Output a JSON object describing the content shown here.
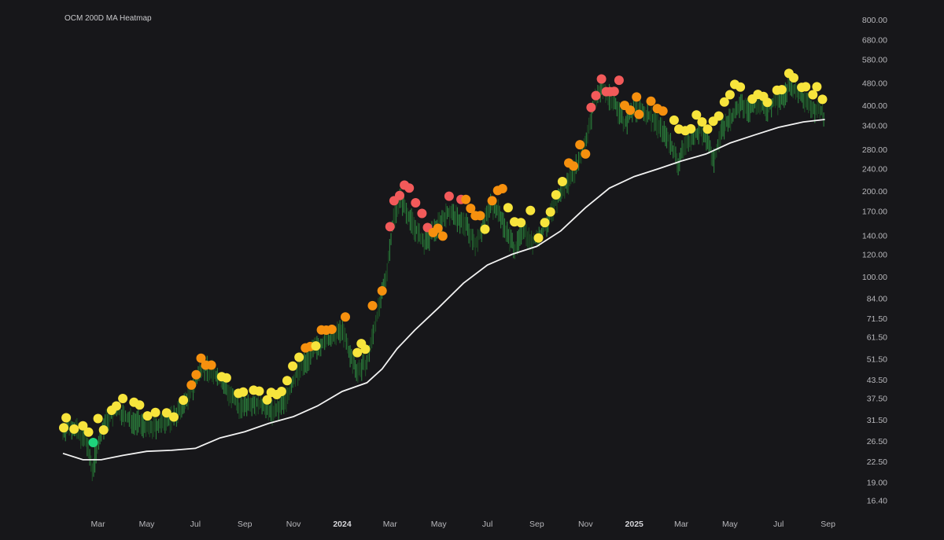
{
  "chart_data": {
    "type": "scatter",
    "title": "OCM 200D MA Heatmap",
    "y_scale": "log",
    "ylim": [
      14.6,
      880
    ],
    "y_ticks": [
      "16.40",
      "19.00",
      "22.50",
      "26.50",
      "31.50",
      "37.50",
      "43.50",
      "51.50",
      "61.50",
      "71.50",
      "84.00",
      "100.00",
      "120.00",
      "140.00",
      "170.00",
      "200.00",
      "240.00",
      "280.00",
      "340.00",
      "400.00",
      "480.00",
      "580.00",
      "680.00",
      "800.00"
    ],
    "x_ticks": [
      {
        "label": "Mar",
        "date": "2023-03-01",
        "bold": false
      },
      {
        "label": "May",
        "date": "2023-05-01",
        "bold": false
      },
      {
        "label": "Jul",
        "date": "2023-07-01",
        "bold": false
      },
      {
        "label": "Sep",
        "date": "2023-09-01",
        "bold": false
      },
      {
        "label": "Nov",
        "date": "2023-11-01",
        "bold": false
      },
      {
        "label": "2024",
        "date": "2024-01-01",
        "bold": true
      },
      {
        "label": "Mar",
        "date": "2024-03-01",
        "bold": false
      },
      {
        "label": "May",
        "date": "2024-05-01",
        "bold": false
      },
      {
        "label": "Jul",
        "date": "2024-07-01",
        "bold": false
      },
      {
        "label": "Sep",
        "date": "2024-09-01",
        "bold": false
      },
      {
        "label": "Nov",
        "date": "2024-11-01",
        "bold": false
      },
      {
        "label": "2025",
        "date": "2025-01-01",
        "bold": true
      },
      {
        "label": "Mar",
        "date": "2025-03-01",
        "bold": false
      },
      {
        "label": "May",
        "date": "2025-05-01",
        "bold": false
      },
      {
        "label": "Jul",
        "date": "2025-07-01",
        "bold": false
      },
      {
        "label": "Sep",
        "date": "2025-09-01",
        "bold": false
      }
    ],
    "xlim": [
      "2023-01-16",
      "2025-09-28"
    ],
    "colors": {
      "background": "#17171a",
      "candle": "#2a7a3a",
      "ma_line": "#f2f2f2",
      "green": "#1ed47c",
      "yellow": "#f7e43c",
      "orange": "#f6900e",
      "red": "#f25a5a"
    },
    "ma_200d": [
      [
        "2023-01-16",
        24.0
      ],
      [
        "2023-02-10",
        22.8
      ],
      [
        "2023-03-05",
        22.8
      ],
      [
        "2023-04-01",
        23.6
      ],
      [
        "2023-05-01",
        24.4
      ],
      [
        "2023-06-01",
        24.6
      ],
      [
        "2023-07-01",
        25.0
      ],
      [
        "2023-08-01",
        27.2
      ],
      [
        "2023-09-01",
        28.6
      ],
      [
        "2023-10-01",
        30.6
      ],
      [
        "2023-11-01",
        32.3
      ],
      [
        "2023-12-01",
        35.2
      ],
      [
        "2024-01-01",
        39.6
      ],
      [
        "2024-02-01",
        42.5
      ],
      [
        "2024-02-20",
        47.5
      ],
      [
        "2024-03-10",
        56.0
      ],
      [
        "2024-04-01",
        65.0
      ],
      [
        "2024-05-01",
        78.0
      ],
      [
        "2024-06-01",
        95.0
      ],
      [
        "2024-07-01",
        110.0
      ],
      [
        "2024-08-01",
        120.0
      ],
      [
        "2024-09-01",
        128.0
      ],
      [
        "2024-10-01",
        145.0
      ],
      [
        "2024-11-01",
        175.0
      ],
      [
        "2024-12-01",
        205.0
      ],
      [
        "2025-01-01",
        225.0
      ],
      [
        "2025-02-01",
        240.0
      ],
      [
        "2025-03-01",
        255.0
      ],
      [
        "2025-04-01",
        270.0
      ],
      [
        "2025-05-01",
        295.0
      ],
      [
        "2025-06-01",
        315.0
      ],
      [
        "2025-07-01",
        335.0
      ],
      [
        "2025-08-01",
        350.0
      ],
      [
        "2025-08-28",
        357.0
      ]
    ],
    "price": [
      [
        "2023-01-16",
        29.0
      ],
      [
        "2023-01-25",
        30.5
      ],
      [
        "2023-02-05",
        28.5
      ],
      [
        "2023-02-15",
        26.0
      ],
      [
        "2023-02-22",
        21.0
      ],
      [
        "2023-03-01",
        26.0
      ],
      [
        "2023-03-10",
        31.0
      ],
      [
        "2023-03-25",
        34.5
      ],
      [
        "2023-04-05",
        32.0
      ],
      [
        "2023-04-20",
        31.0
      ],
      [
        "2023-05-05",
        29.5
      ],
      [
        "2023-05-20",
        30.5
      ],
      [
        "2023-06-01",
        32.0
      ],
      [
        "2023-06-15",
        35.0
      ],
      [
        "2023-07-01",
        43.0
      ],
      [
        "2023-07-10",
        49.0
      ],
      [
        "2023-07-20",
        47.0
      ],
      [
        "2023-08-01",
        44.0
      ],
      [
        "2023-08-15",
        38.0
      ],
      [
        "2023-08-25",
        35.0
      ],
      [
        "2023-09-10",
        36.5
      ],
      [
        "2023-09-25",
        35.5
      ],
      [
        "2023-10-05",
        33.5
      ],
      [
        "2023-10-15",
        35.0
      ],
      [
        "2023-10-25",
        38.5
      ],
      [
        "2023-11-05",
        46.0
      ],
      [
        "2023-11-15",
        50.0
      ],
      [
        "2023-11-25",
        55.0
      ],
      [
        "2023-12-10",
        60.0
      ],
      [
        "2023-12-20",
        61.0
      ],
      [
        "2024-01-01",
        66.0
      ],
      [
        "2024-01-12",
        52.0
      ],
      [
        "2024-01-20",
        47.0
      ],
      [
        "2024-02-01",
        50.0
      ],
      [
        "2024-02-12",
        70.0
      ],
      [
        "2024-02-25",
        100.0
      ],
      [
        "2024-03-05",
        160.0
      ],
      [
        "2024-03-14",
        190.0
      ],
      [
        "2024-03-22",
        170.0
      ],
      [
        "2024-04-01",
        150.0
      ],
      [
        "2024-04-12",
        130.0
      ],
      [
        "2024-04-22",
        142.0
      ],
      [
        "2024-05-05",
        160.0
      ],
      [
        "2024-05-15",
        170.0
      ],
      [
        "2024-05-25",
        160.0
      ],
      [
        "2024-06-05",
        152.0
      ],
      [
        "2024-06-15",
        130.0
      ],
      [
        "2024-06-25",
        150.0
      ],
      [
        "2024-07-05",
        180.0
      ],
      [
        "2024-07-15",
        170.0
      ],
      [
        "2024-07-25",
        145.0
      ],
      [
        "2024-08-05",
        125.0
      ],
      [
        "2024-08-15",
        150.0
      ],
      [
        "2024-08-25",
        132.0
      ],
      [
        "2024-09-05",
        140.0
      ],
      [
        "2024-09-15",
        158.0
      ],
      [
        "2024-09-25",
        185.0
      ],
      [
        "2024-10-05",
        205.0
      ],
      [
        "2024-10-15",
        230.0
      ],
      [
        "2024-10-25",
        260.0
      ],
      [
        "2024-11-05",
        330.0
      ],
      [
        "2024-11-12",
        420.0
      ],
      [
        "2024-11-20",
        460.0
      ],
      [
        "2024-12-01",
        430.0
      ],
      [
        "2024-12-10",
        400.0
      ],
      [
        "2024-12-20",
        345.0
      ],
      [
        "2025-01-01",
        390.0
      ],
      [
        "2025-01-12",
        380.0
      ],
      [
        "2025-01-25",
        360.0
      ],
      [
        "2025-02-05",
        330.0
      ],
      [
        "2025-02-15",
        300.0
      ],
      [
        "2025-02-25",
        250.0
      ],
      [
        "2025-03-05",
        290.0
      ],
      [
        "2025-03-15",
        310.0
      ],
      [
        "2025-03-25",
        330.0
      ],
      [
        "2025-04-05",
        300.0
      ],
      [
        "2025-04-10",
        250.0
      ],
      [
        "2025-04-20",
        330.0
      ],
      [
        "2025-05-05",
        370.0
      ],
      [
        "2025-05-15",
        400.0
      ],
      [
        "2025-05-25",
        390.0
      ],
      [
        "2025-06-05",
        410.0
      ],
      [
        "2025-06-15",
        390.0
      ],
      [
        "2025-06-25",
        410.0
      ],
      [
        "2025-07-05",
        420.0
      ],
      [
        "2025-07-15",
        470.0
      ],
      [
        "2025-07-25",
        440.0
      ],
      [
        "2025-08-05",
        420.0
      ],
      [
        "2025-08-15",
        390.0
      ],
      [
        "2025-08-25",
        380.0
      ],
      [
        "2025-08-28",
        355.0
      ]
    ],
    "dots": [
      [
        "2023-01-17",
        29.5,
        "yellow"
      ],
      [
        "2023-01-20",
        32.0,
        "yellow"
      ],
      [
        "2023-01-30",
        29.2,
        "yellow"
      ],
      [
        "2023-02-10",
        30.0,
        "yellow"
      ],
      [
        "2023-02-17",
        28.5,
        "yellow"
      ],
      [
        "2023-02-23",
        26.2,
        "green"
      ],
      [
        "2023-03-01",
        31.8,
        "yellow"
      ],
      [
        "2023-03-08",
        29.0,
        "yellow"
      ],
      [
        "2023-03-18",
        34.0,
        "yellow"
      ],
      [
        "2023-03-24",
        35.2,
        "yellow"
      ],
      [
        "2023-04-01",
        37.4,
        "yellow"
      ],
      [
        "2023-04-15",
        36.3,
        "yellow"
      ],
      [
        "2023-04-22",
        35.5,
        "yellow"
      ],
      [
        "2023-05-02",
        32.5,
        "yellow"
      ],
      [
        "2023-05-12",
        33.4,
        "yellow"
      ],
      [
        "2023-05-26",
        33.3,
        "yellow"
      ],
      [
        "2023-06-04",
        32.2,
        "yellow"
      ],
      [
        "2023-06-16",
        36.9,
        "yellow"
      ],
      [
        "2023-06-26",
        41.7,
        "orange"
      ],
      [
        "2023-07-02",
        45.3,
        "orange"
      ],
      [
        "2023-07-08",
        51.8,
        "orange"
      ],
      [
        "2023-07-14",
        49.0,
        "orange"
      ],
      [
        "2023-07-21",
        49.0,
        "orange"
      ],
      [
        "2023-08-03",
        44.6,
        "yellow"
      ],
      [
        "2023-08-09",
        44.2,
        "yellow"
      ],
      [
        "2023-08-24",
        39.0,
        "yellow"
      ],
      [
        "2023-08-30",
        39.4,
        "yellow"
      ],
      [
        "2023-09-12",
        40.0,
        "yellow"
      ],
      [
        "2023-09-19",
        39.7,
        "yellow"
      ],
      [
        "2023-09-29",
        37.0,
        "yellow"
      ],
      [
        "2023-10-04",
        39.3,
        "yellow"
      ],
      [
        "2023-10-11",
        38.6,
        "yellow"
      ],
      [
        "2023-10-17",
        39.6,
        "yellow"
      ],
      [
        "2023-10-24",
        43.2,
        "yellow"
      ],
      [
        "2023-10-31",
        48.6,
        "yellow"
      ],
      [
        "2023-11-08",
        52.2,
        "yellow"
      ],
      [
        "2023-11-16",
        56.3,
        "orange"
      ],
      [
        "2023-11-22",
        56.9,
        "orange"
      ],
      [
        "2023-11-29",
        57.2,
        "yellow"
      ],
      [
        "2023-12-06",
        65.1,
        "orange"
      ],
      [
        "2023-12-12",
        65.0,
        "orange"
      ],
      [
        "2023-12-19",
        65.4,
        "orange"
      ],
      [
        "2024-01-05",
        72.3,
        "orange"
      ],
      [
        "2024-01-20",
        54.2,
        "yellow"
      ],
      [
        "2024-01-25",
        58.3,
        "yellow"
      ],
      [
        "2024-01-30",
        55.7,
        "yellow"
      ],
      [
        "2024-02-08",
        79.2,
        "orange"
      ],
      [
        "2024-02-20",
        89.3,
        "orange"
      ],
      [
        "2024-03-01",
        150.0,
        "red"
      ],
      [
        "2024-03-06",
        185.0,
        "red"
      ],
      [
        "2024-03-13",
        193.0,
        "red"
      ],
      [
        "2024-03-19",
        210.0,
        "red"
      ],
      [
        "2024-03-25",
        205.0,
        "red"
      ],
      [
        "2024-04-02",
        182.0,
        "red"
      ],
      [
        "2024-04-10",
        167.0,
        "red"
      ],
      [
        "2024-04-17",
        149.0,
        "red"
      ],
      [
        "2024-04-24",
        143.0,
        "orange"
      ],
      [
        "2024-04-30",
        148.0,
        "orange"
      ],
      [
        "2024-05-06",
        139.0,
        "orange"
      ],
      [
        "2024-05-14",
        192.0,
        "red"
      ],
      [
        "2024-05-29",
        187.0,
        "red"
      ],
      [
        "2024-06-04",
        187.0,
        "orange"
      ],
      [
        "2024-06-10",
        174.0,
        "orange"
      ],
      [
        "2024-06-16",
        164.0,
        "orange"
      ],
      [
        "2024-06-22",
        164.0,
        "orange"
      ],
      [
        "2024-06-28",
        147.0,
        "yellow"
      ],
      [
        "2024-07-07",
        185.0,
        "orange"
      ],
      [
        "2024-07-14",
        201.0,
        "orange"
      ],
      [
        "2024-07-20",
        204.0,
        "orange"
      ],
      [
        "2024-07-27",
        175.0,
        "yellow"
      ],
      [
        "2024-08-04",
        156.0,
        "yellow"
      ],
      [
        "2024-08-12",
        155.0,
        "yellow"
      ],
      [
        "2024-08-24",
        171.0,
        "yellow"
      ],
      [
        "2024-09-03",
        137.0,
        "yellow"
      ],
      [
        "2024-09-11",
        155.0,
        "yellow"
      ],
      [
        "2024-09-18",
        169.0,
        "yellow"
      ],
      [
        "2024-09-25",
        194.0,
        "yellow"
      ],
      [
        "2024-10-03",
        216.0,
        "yellow"
      ],
      [
        "2024-10-11",
        251.0,
        "orange"
      ],
      [
        "2024-10-17",
        245.0,
        "orange"
      ],
      [
        "2024-10-25",
        291.0,
        "orange"
      ],
      [
        "2024-11-01",
        270.0,
        "orange"
      ],
      [
        "2024-11-08",
        393.0,
        "red"
      ],
      [
        "2024-11-14",
        433.0,
        "red"
      ],
      [
        "2024-11-21",
        495.0,
        "red"
      ],
      [
        "2024-11-27",
        447.0,
        "red"
      ],
      [
        "2024-12-02",
        447.0,
        "red"
      ],
      [
        "2024-12-07",
        448.0,
        "red"
      ],
      [
        "2024-12-13",
        490.0,
        "red"
      ],
      [
        "2024-12-20",
        400.0,
        "orange"
      ],
      [
        "2024-12-27",
        385.0,
        "orange"
      ],
      [
        "2025-01-04",
        428.0,
        "orange"
      ],
      [
        "2025-01-07",
        372.0,
        "orange"
      ],
      [
        "2025-01-22",
        414.0,
        "orange"
      ],
      [
        "2025-01-30",
        390.0,
        "orange"
      ],
      [
        "2025-02-06",
        382.0,
        "orange"
      ],
      [
        "2025-02-20",
        355.0,
        "yellow"
      ],
      [
        "2025-02-26",
        330.0,
        "yellow"
      ],
      [
        "2025-03-06",
        326.0,
        "yellow"
      ],
      [
        "2025-03-13",
        331.0,
        "yellow"
      ],
      [
        "2025-03-20",
        370.0,
        "yellow"
      ],
      [
        "2025-03-27",
        350.0,
        "yellow"
      ],
      [
        "2025-04-03",
        330.0,
        "yellow"
      ],
      [
        "2025-04-10",
        352.0,
        "yellow"
      ],
      [
        "2025-04-17",
        367.0,
        "yellow"
      ],
      [
        "2025-04-24",
        411.0,
        "yellow"
      ],
      [
        "2025-05-01",
        436.0,
        "yellow"
      ],
      [
        "2025-05-07",
        474.0,
        "yellow"
      ],
      [
        "2025-05-14",
        464.0,
        "yellow"
      ],
      [
        "2025-05-29",
        421.0,
        "yellow"
      ],
      [
        "2025-06-05",
        437.0,
        "yellow"
      ],
      [
        "2025-06-12",
        430.0,
        "yellow"
      ],
      [
        "2025-06-17",
        410.0,
        "yellow"
      ],
      [
        "2025-06-29",
        452.0,
        "yellow"
      ],
      [
        "2025-07-05",
        454.0,
        "yellow"
      ],
      [
        "2025-07-14",
        518.0,
        "yellow"
      ],
      [
        "2025-07-20",
        500.0,
        "yellow"
      ],
      [
        "2025-07-30",
        463.0,
        "yellow"
      ],
      [
        "2025-08-04",
        465.0,
        "yellow"
      ],
      [
        "2025-08-13",
        436.0,
        "yellow"
      ],
      [
        "2025-08-18",
        465.0,
        "yellow"
      ],
      [
        "2025-08-25",
        420.0,
        "yellow"
      ]
    ]
  }
}
